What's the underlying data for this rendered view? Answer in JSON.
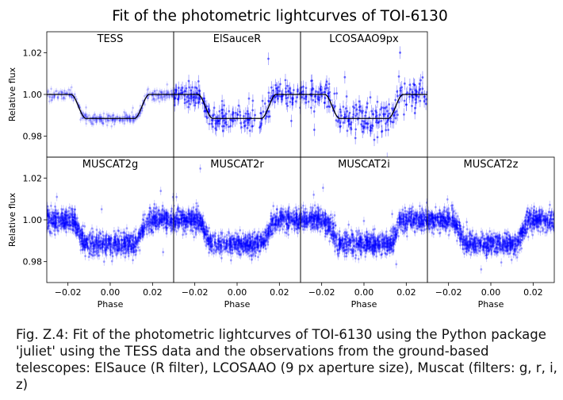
{
  "figure_title": "Fit of the photometric lightcurves of TOI-6130",
  "caption": "Fig. Z.4: Fit of the photometric lightcurves of TOI-6130 using the Python package 'juliet' using the TESS data and the observations from the ground-based telescopes: ElSauce (R filter), LCOSAAO (9 px aperture size), Muscat (filters: g, r, i, z)",
  "colors": {
    "data": "#0000ff",
    "model": "#000000",
    "frame": "#000000"
  },
  "chart_data": {
    "type": "scatter",
    "shared_axes": {
      "xlabel": "Phase",
      "ylabel": "Relative flux",
      "xlim": [
        -0.03,
        0.03
      ],
      "ylim": [
        0.97,
        1.03
      ],
      "xticks": [
        -0.02,
        0.0,
        0.02
      ],
      "xtick_labels": [
        "−0.02",
        "0.00",
        "0.02"
      ],
      "yticks": [
        0.98,
        1.0,
        1.02
      ],
      "ytick_labels": [
        "0.98",
        "1.00",
        "1.02"
      ]
    },
    "transit_model": {
      "baseline": 1.0,
      "depth": 0.0115,
      "ingress_start_phase": -0.0185,
      "full_transit_start_phase": -0.0115,
      "full_transit_end_phase": 0.0115,
      "egress_end_phase": 0.0185
    },
    "panels": [
      {
        "title": "TESS",
        "row": 0,
        "col": 0,
        "scatter": 0.0012,
        "n_points": 360,
        "errbar": 0.0015,
        "alpha": 0.2,
        "model_line": true
      },
      {
        "title": "ElSauceR",
        "row": 0,
        "col": 1,
        "scatter": 0.003,
        "n_points": 260,
        "errbar": 0.003,
        "alpha": 0.55,
        "model_line": true
      },
      {
        "title": "LCOSAAO9px",
        "row": 0,
        "col": 2,
        "scatter": 0.0035,
        "n_points": 260,
        "errbar": 0.003,
        "alpha": 0.55,
        "model_line": true
      },
      {
        "title": "MUSCAT2g",
        "row": 1,
        "col": 0,
        "scatter": 0.0028,
        "n_points": 1100,
        "errbar": 0.002,
        "alpha": 0.35,
        "model_line": false
      },
      {
        "title": "MUSCAT2r",
        "row": 1,
        "col": 1,
        "scatter": 0.0025,
        "n_points": 1100,
        "errbar": 0.002,
        "alpha": 0.35,
        "model_line": false
      },
      {
        "title": "MUSCAT2i",
        "row": 1,
        "col": 2,
        "scatter": 0.0027,
        "n_points": 1100,
        "errbar": 0.002,
        "alpha": 0.35,
        "model_line": false
      },
      {
        "title": "MUSCAT2z",
        "row": 1,
        "col": 3,
        "scatter": 0.0025,
        "n_points": 1100,
        "errbar": 0.002,
        "alpha": 0.35,
        "model_line": false
      }
    ]
  }
}
